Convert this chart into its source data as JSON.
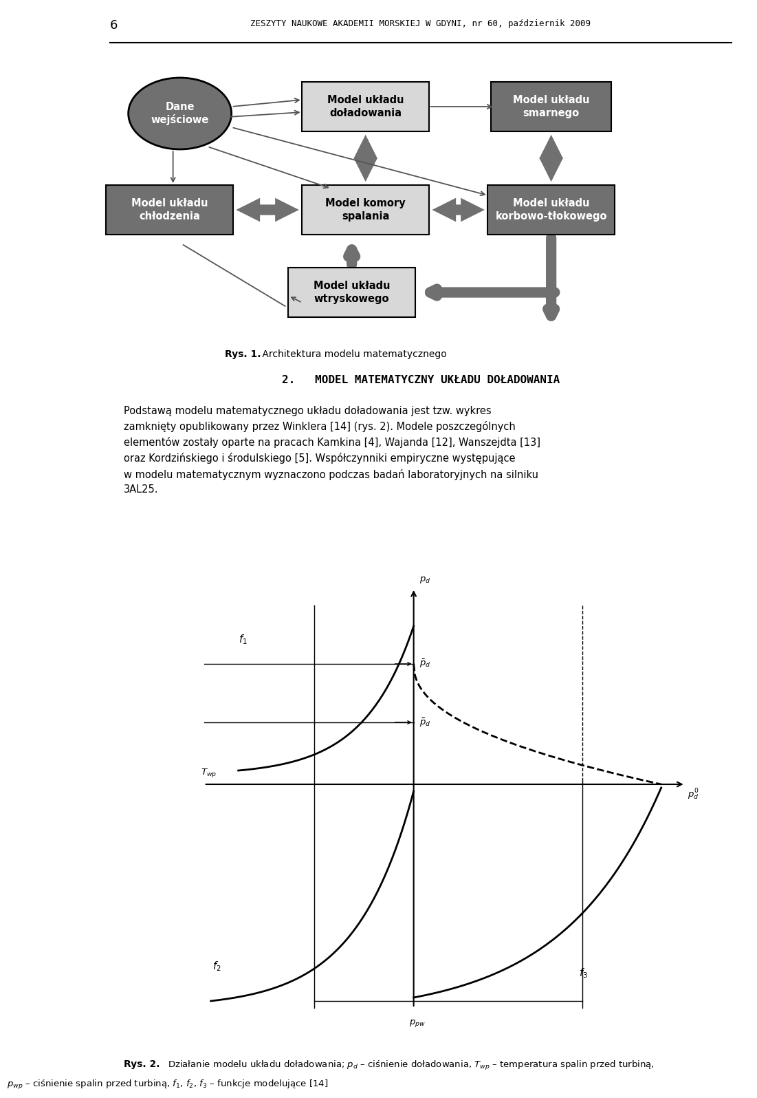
{
  "header_number": "6",
  "header_text": "ZESZYTY NAUKOWE AKADEMII MORSKIEJ W GDYNI, nr 60, październik 2009",
  "dark_gray": "#707070",
  "light_gray": "#d8d8d8",
  "mid_gray": "#909090",
  "white": "#ffffff",
  "black": "#000000",
  "fig1_caption": "Architektura modelu matematycznego",
  "section_title": "2.   MODEL MATEMATYCZNY UKŁADU DOŁADOWANIA",
  "para_text": "Podstawą modelu matematycznego układu doładowania jest tzw. wykres\nzamknięty opublikowany przez Winklera [14] (rys. 2). Modele poszczególnych\nelementów zostały oparte na pracach Kamkina [4], Wajanda [12], Wanszejdta [13]\noraz Kordzińskiego i środulskiego [5]. Współczynniki empiryczne występujące\nw modelu matematycznym wyznaczono podczas badań laboratoryjnych na silniku\n3AL25.",
  "fig2_cap_line1": "Działanie modelu układu doładowania; $p_d$ – ciśnienie doładowania, $T_{wp}$ – temperatura spalin przed turbiną,",
  "fig2_cap_line2": "$p_{wp}$ – ciśnienie spalin przed turbiną, $f_1$, $f_2$, $f_3$ – funkcje modelujące [14]"
}
